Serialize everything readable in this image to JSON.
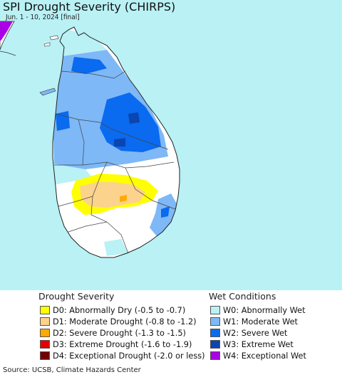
{
  "title": "SPI Drought Severity (CHIRPS)",
  "subtitle": "Jun. 1 - 10, 2024 [final]",
  "colors": {
    "sea": "#b9f1f5",
    "land": "#ffffff",
    "border": "#333333",
    "D0": "#ffff00",
    "D1": "#fcd38c",
    "D2": "#ffaa00",
    "D3": "#e60000",
    "D4": "#730000",
    "W0": "#b9f1f5",
    "W1": "#7eb8f6",
    "W2": "#0a6af0",
    "W3": "#0a45b0",
    "W4": "#a900e6"
  },
  "legend": {
    "drought_heading": "Drought Severity",
    "wet_heading": "Wet Conditions",
    "drought": [
      {
        "label": "D0: Abnormally Dry (-0.5 to -0.7)",
        "color": "#ffff00"
      },
      {
        "label": "D1: Moderate Drought (-0.8 to -1.2)",
        "color": "#fcd38c"
      },
      {
        "label": "D2: Severe Drought (-1.3 to -1.5)",
        "color": "#ffaa00"
      },
      {
        "label": "D3: Extreme Drought (-1.6 to -1.9)",
        "color": "#e60000"
      },
      {
        "label": "D4: Exceptional Drought (-2.0 or less)",
        "color": "#730000"
      }
    ],
    "wet": [
      {
        "label": "W0: Abnormally Wet",
        "color": "#b9f1f5"
      },
      {
        "label": "W1: Moderate Wet",
        "color": "#7eb8f6"
      },
      {
        "label": "W2: Severe Wet",
        "color": "#0a6af0"
      },
      {
        "label": "W3: Extreme Wet",
        "color": "#0a45b0"
      },
      {
        "label": "W4: Exceptional Wet",
        "color": "#a900e6"
      }
    ]
  },
  "source": "Source: UCSB, Climate Hazards Center"
}
